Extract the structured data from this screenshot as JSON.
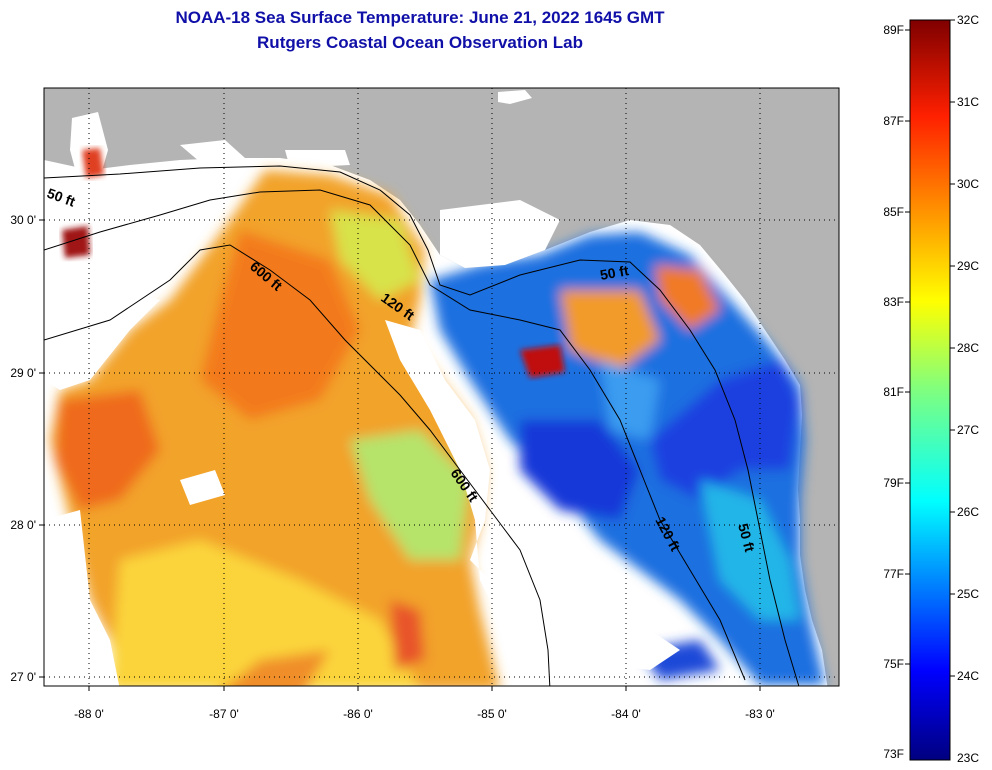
{
  "header": {
    "title": "NOAA-18 Sea Surface Temperature:  June 21, 2022 1645 GMT",
    "subtitle": "Rutgers Coastal Ocean Observation Lab"
  },
  "map": {
    "lon_labels": [
      "-88 0'",
      "-87 0'",
      "-86 0'",
      "-85 0'",
      "-84 0'",
      "-83 0'"
    ],
    "lat_labels": [
      "30 0'",
      "29 0'",
      "28 0'",
      "27 0'"
    ],
    "isobaths": {
      "ft50_west": "50 ft",
      "ft50_east": "50 ft",
      "ft50_south": "50 ft",
      "ft120_north": "120 ft",
      "ft120_south": "120 ft",
      "ft600_north": "600 ft",
      "ft600_south": "600 ft"
    },
    "colors": {
      "land": "#b4b4b4",
      "nodata": "#ffffff",
      "warm": "#ee8a2a",
      "cool": "#1a6ad8"
    }
  },
  "colorbar": {
    "fahrenheit_labels": [
      "89F",
      "87F",
      "85F",
      "83F",
      "81F",
      "79F",
      "77F",
      "75F",
      "73F"
    ],
    "celsius_labels": [
      "32C",
      "31C",
      "30C",
      "29C",
      "28C",
      "27C",
      "26C",
      "25C",
      "24C",
      "23C"
    ],
    "range_c": [
      23,
      32
    ],
    "range_f": [
      73,
      89
    ]
  }
}
